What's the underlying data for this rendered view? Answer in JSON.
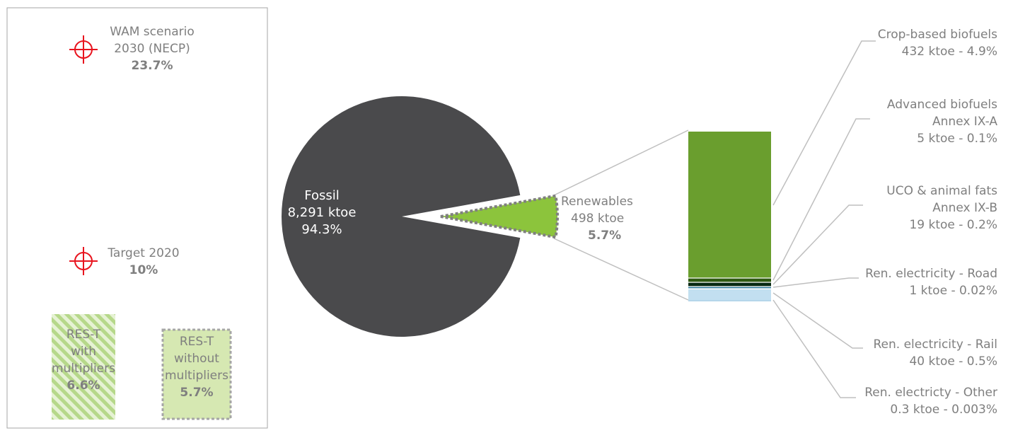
{
  "colors": {
    "fossil": "#4a4a4c",
    "renewables": "#8cc43c",
    "crop": "#6a9e2e",
    "advanced": "#2f5a12",
    "uco": "#082a12",
    "elec_road": "#2f7a9a",
    "elec_rail": "#c2dff0",
    "elec_other": "#b5d6ea",
    "target": "#e8141e",
    "res_green": "#d6e8b2",
    "res_stripe": "#a8d070",
    "connector": "#bfbfbf",
    "text": "#7f7f7f"
  },
  "icons": {
    "target": "crosshair-target-icon"
  },
  "targets": [
    {
      "line1": "WAM scenario",
      "line2": "2030 (NECP)",
      "value": "23.7%",
      "value_num": 23.7
    },
    {
      "line1": "Target 2020",
      "line2": "",
      "value": "10%",
      "value_num": 10
    }
  ],
  "res_t": [
    {
      "lines": [
        "RES-T",
        "with",
        "multipliers"
      ],
      "value": "6.6%",
      "value_num": 6.6
    },
    {
      "lines": [
        "RES-T",
        "without",
        "multipliers"
      ],
      "value": "5.7%",
      "value_num": 5.7
    }
  ],
  "chart_data": {
    "type": "pie",
    "pie": {
      "slices": [
        {
          "key": "fossil",
          "name": "Fossil",
          "value": 8291,
          "value_label": "8,291 ktoe",
          "share_label": "94.3%",
          "share": 94.3
        },
        {
          "key": "renewables",
          "name": "Renewables",
          "value": 498,
          "value_label": "498 ktoe",
          "share_label": "5.7%",
          "share": 5.7
        }
      ]
    },
    "breakdown": {
      "type": "stacked-bar",
      "segments": [
        {
          "key": "crop",
          "lines": [
            "Crop-based biofuels"
          ],
          "detail": "432 ktoe - 4.9%",
          "value": 432,
          "share": 4.9
        },
        {
          "key": "advanced",
          "lines": [
            "Advanced biofuels",
            "Annex IX-A"
          ],
          "detail": "5 ktoe - 0.1%",
          "value": 5,
          "share": 0.1
        },
        {
          "key": "uco",
          "lines": [
            "UCO & animal fats",
            "Annex IX-B"
          ],
          "detail": "19 ktoe - 0.2%",
          "value": 19,
          "share": 0.2
        },
        {
          "key": "elec_road",
          "lines": [
            "Ren. electricity - Road"
          ],
          "detail": "1 ktoe - 0.02%",
          "value": 1,
          "share": 0.02
        },
        {
          "key": "elec_rail",
          "lines": [
            "Ren. electricity - Rail"
          ],
          "detail": "40 ktoe - 0.5%",
          "value": 40,
          "share": 0.5
        },
        {
          "key": "elec_other",
          "lines": [
            "Ren. electricty - Other"
          ],
          "detail": "0.3 ktoe - 0.003%",
          "value": 0.3,
          "share": 0.003
        }
      ]
    }
  }
}
